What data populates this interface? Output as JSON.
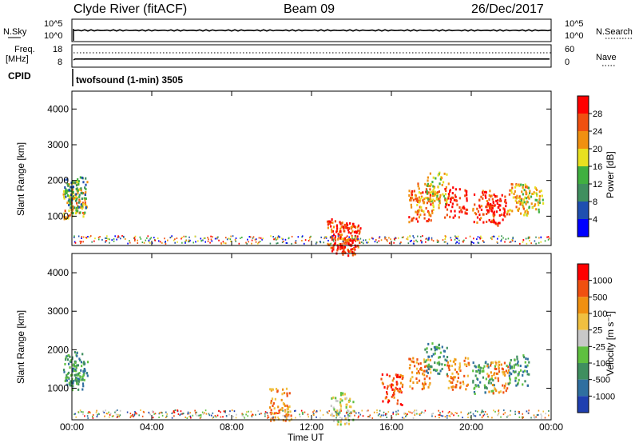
{
  "header": {
    "station": "Clyde River (fitACF)",
    "beam": "Beam 09",
    "date": "26/Dec/2017"
  },
  "noise_panel": {
    "left_label": "N.Sky",
    "right_label": "N.Search",
    "left_ticks": [
      "10^5",
      "10^0"
    ],
    "right_ticks": [
      "10^5",
      "10^0"
    ]
  },
  "freq_panel": {
    "left_label_line1": "Freq.",
    "left_label_line2": "[MHz]",
    "right_label": "Nave",
    "left_ticks": [
      "18",
      "8"
    ],
    "right_ticks": [
      "60",
      "0"
    ]
  },
  "cpid": {
    "label": "CPID",
    "value": "twofsound (1-min) 3505"
  },
  "chart_data": [
    {
      "type": "heatmap",
      "name": "power",
      "ylabel": "Slant Range [km]",
      "yticks": [
        "4000",
        "3000",
        "2000",
        "1000"
      ],
      "colorbar_label": "Power [dB]",
      "colorbar_ticks": [
        "28",
        "24",
        "20",
        "16",
        "12",
        "8",
        "4"
      ],
      "colors": [
        "#0000ff",
        "#1f4fb0",
        "#3f8f5f",
        "#40b040",
        "#e8e020",
        "#f09010",
        "#f05010",
        "#ff0000"
      ],
      "cells": [
        {
          "t": 0.1,
          "r": 1400,
          "c": 5
        },
        {
          "t": 0.2,
          "r": 1550,
          "c": 4
        },
        {
          "t": 0.15,
          "r": 1700,
          "c": 2
        },
        {
          "t": 13.3,
          "r": 500,
          "c": 6
        },
        {
          "t": 13.6,
          "r": 400,
          "c": 7
        },
        {
          "t": 13.9,
          "r": 350,
          "c": 6
        },
        {
          "t": 17.4,
          "r": 1300,
          "c": 6
        },
        {
          "t": 17.8,
          "r": 1500,
          "c": 5
        },
        {
          "t": 18.3,
          "r": 1800,
          "c": 4
        },
        {
          "t": 19.2,
          "r": 1400,
          "c": 7
        },
        {
          "t": 20.6,
          "r": 1300,
          "c": 6
        },
        {
          "t": 21.2,
          "r": 1200,
          "c": 7
        },
        {
          "t": 22.3,
          "r": 1500,
          "c": 5
        },
        {
          "t": 23.0,
          "r": 1500,
          "c": 4
        }
      ]
    },
    {
      "type": "heatmap",
      "name": "velocity",
      "ylabel": "Slant Range [km]",
      "yticks": [
        "4000",
        "3000",
        "2000",
        "1000"
      ],
      "colorbar_label": "Velocity [m s⁻¹]",
      "colorbar_ticks": [
        "1000",
        "500",
        "100",
        "25",
        "-25",
        "-100",
        "-500",
        "-1000"
      ],
      "colors": [
        "#1f3fb0",
        "#2f6fa0",
        "#3f8f5f",
        "#5fc040",
        "#c8c8c8",
        "#f0c040",
        "#f09010",
        "#f05010",
        "#ff0000"
      ],
      "cells": [
        {
          "t": 0.1,
          "r": 1400,
          "c": 2
        },
        {
          "t": 0.2,
          "r": 1600,
          "c": 2
        },
        {
          "t": 10.4,
          "r": 600,
          "c": 6
        },
        {
          "t": 13.5,
          "r": 500,
          "c": 4
        },
        {
          "t": 16.0,
          "r": 1000,
          "c": 7
        },
        {
          "t": 17.4,
          "r": 1400,
          "c": 6
        },
        {
          "t": 18.2,
          "r": 1800,
          "c": 2
        },
        {
          "t": 19.3,
          "r": 1400,
          "c": 6
        },
        {
          "t": 20.6,
          "r": 1300,
          "c": 2
        },
        {
          "t": 21.3,
          "r": 1300,
          "c": 6
        },
        {
          "t": 22.3,
          "r": 1500,
          "c": 2
        }
      ]
    }
  ],
  "xaxis": {
    "label": "Time UT",
    "ticks": [
      "00:00",
      "04:00",
      "08:00",
      "12:00",
      "16:00",
      "20:00",
      "00:00"
    ]
  }
}
